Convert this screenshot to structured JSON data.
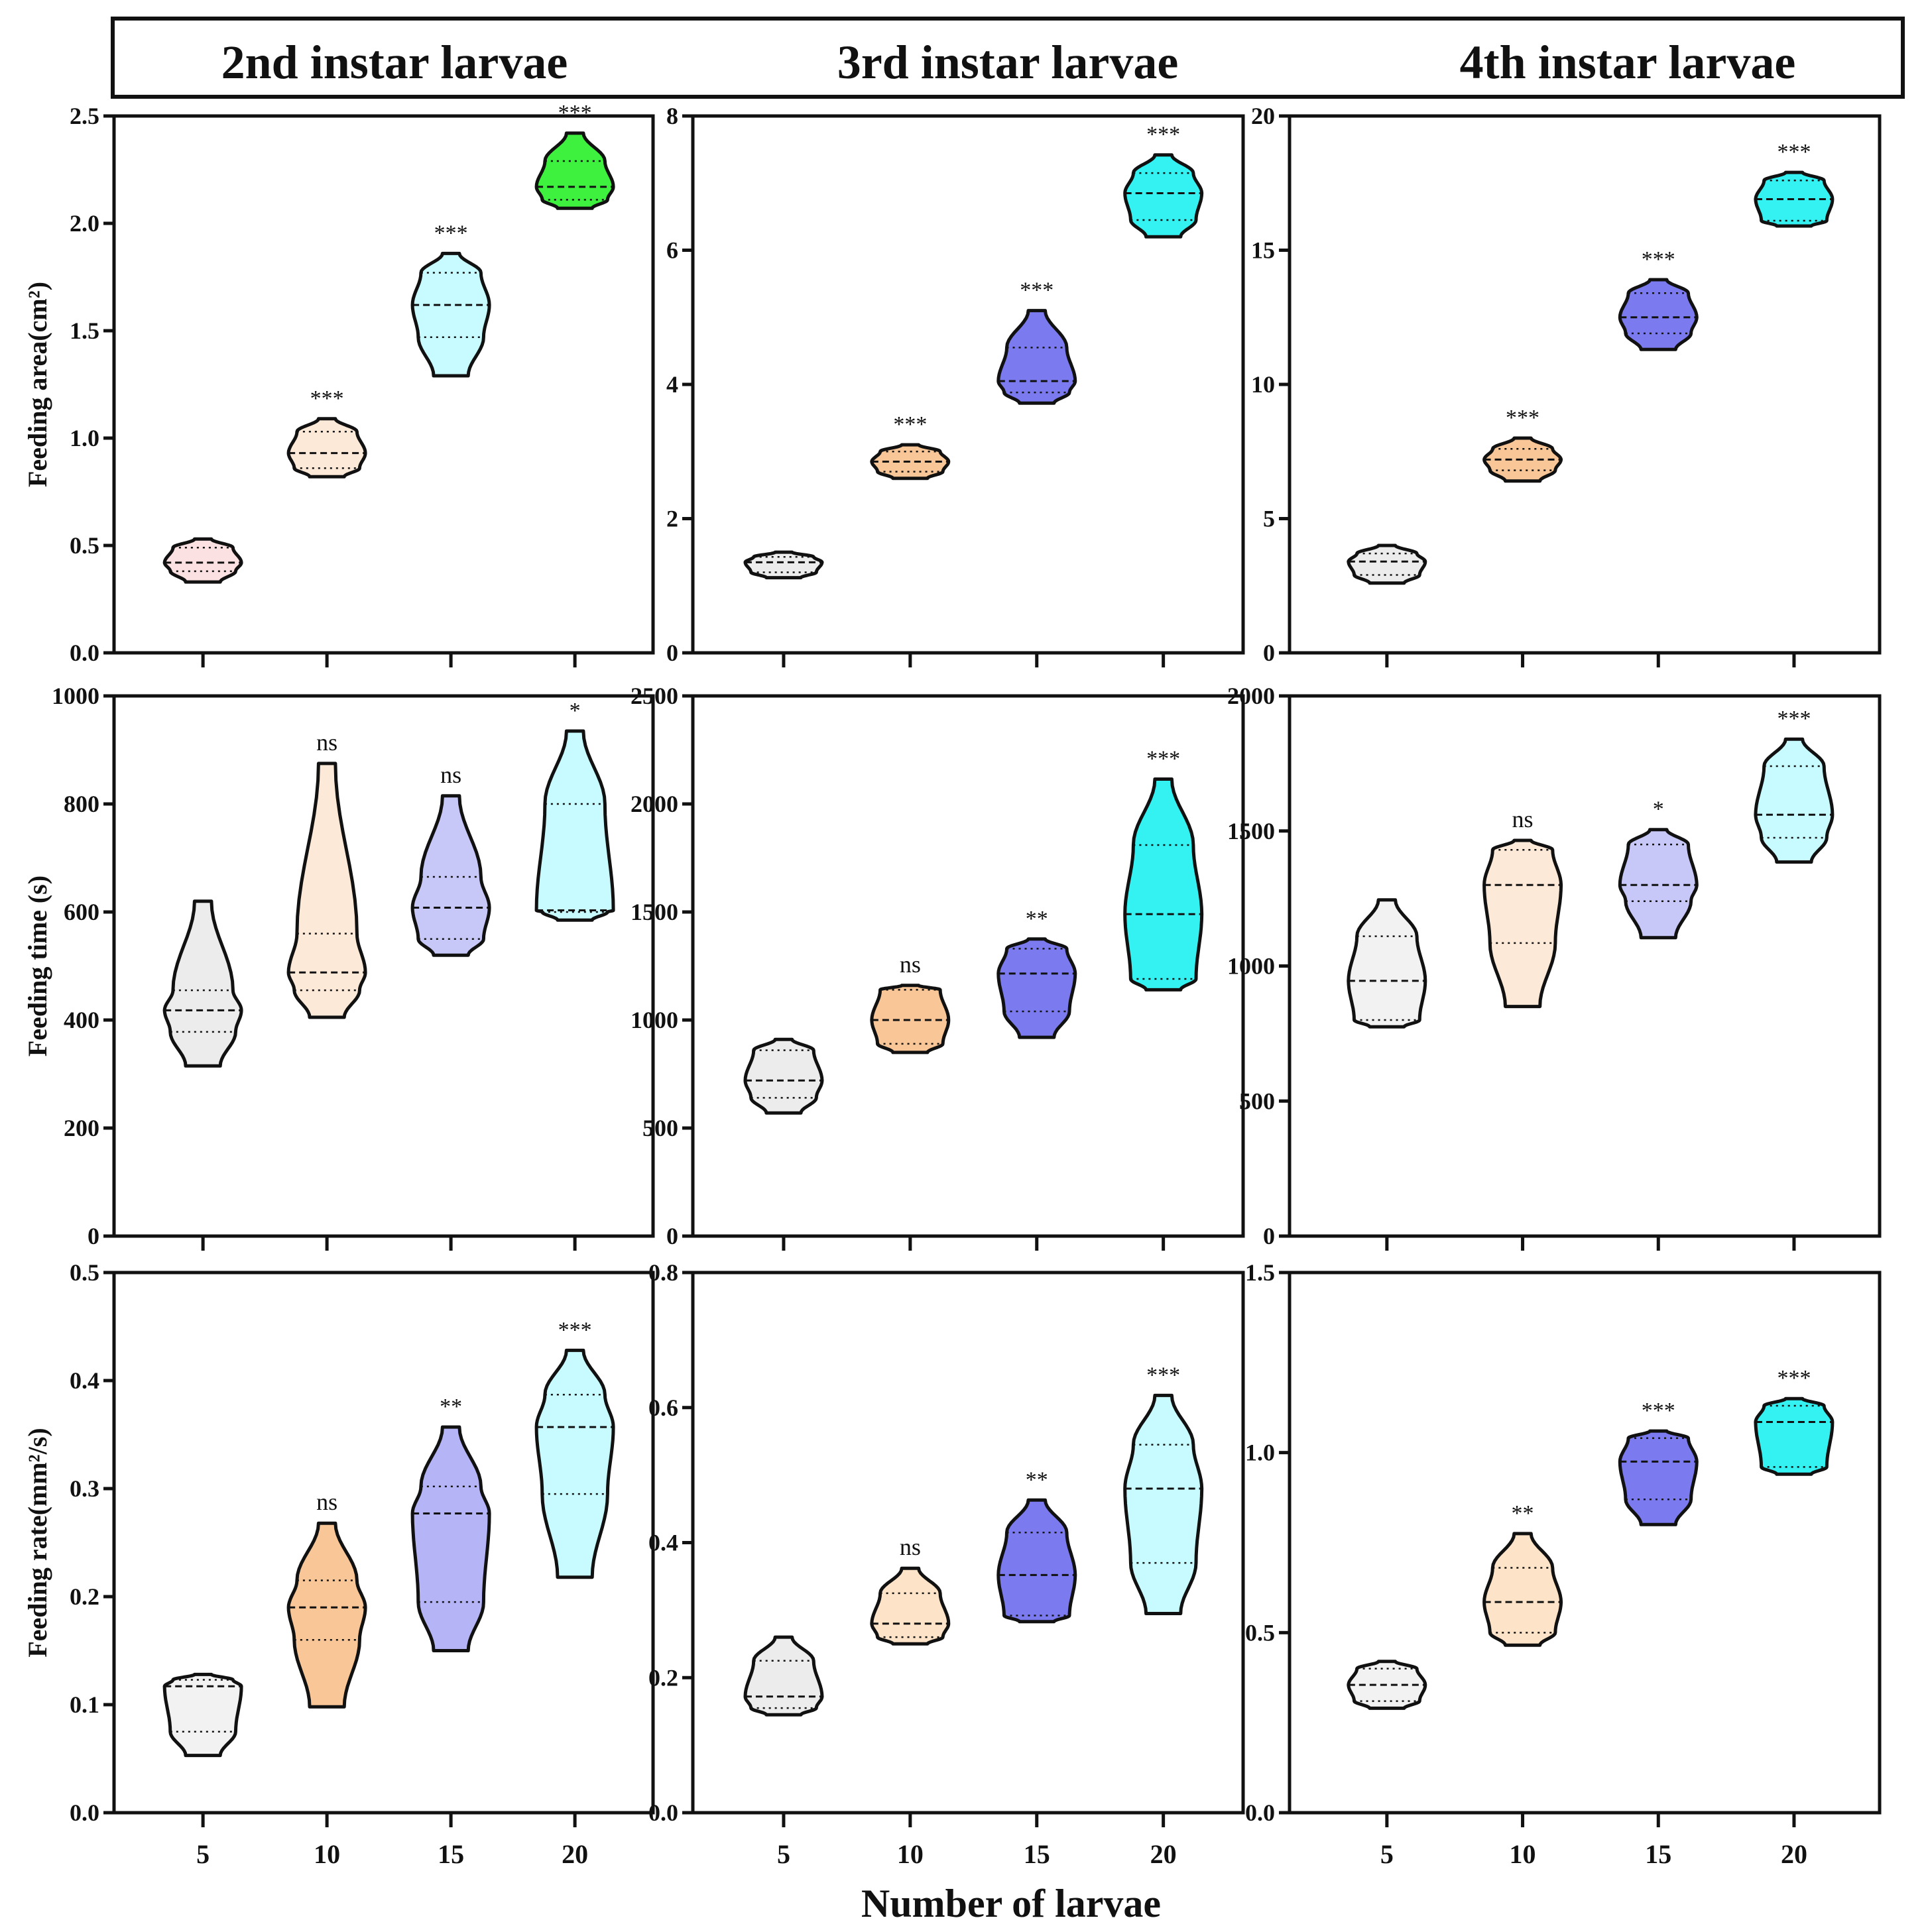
{
  "header": {
    "col_titles": [
      "2nd instar larvae",
      "3rd instar larvae",
      "4th instar larvae"
    ]
  },
  "figure": {
    "xlabel": "Number of larvae"
  },
  "chart_data": [
    {
      "id": "area-2nd",
      "type": "violin",
      "instar": "2nd instar larvae",
      "ylabel": "Feeding area(cm²)",
      "ylim": [
        0,
        2.5
      ],
      "yticks": [
        "0.0",
        "0.5",
        "1.0",
        "1.5",
        "2.0",
        "2.5"
      ],
      "categories": [
        "5",
        "10",
        "15",
        "20"
      ],
      "groups": [
        {
          "min": 0.33,
          "q1": 0.38,
          "median": 0.42,
          "q3": 0.49,
          "max": 0.53,
          "sig": "",
          "color": "#fbe1e1"
        },
        {
          "min": 0.82,
          "q1": 0.86,
          "median": 0.93,
          "q3": 1.03,
          "max": 1.09,
          "sig": "***",
          "color": "#fde9d8"
        },
        {
          "min": 1.29,
          "q1": 1.47,
          "median": 1.62,
          "q3": 1.77,
          "max": 1.86,
          "sig": "***",
          "color": "#c8fbff"
        },
        {
          "min": 2.07,
          "q1": 2.11,
          "median": 2.17,
          "q3": 2.29,
          "max": 2.42,
          "sig": "***",
          "color": "#3ef13e"
        }
      ]
    },
    {
      "id": "area-3rd",
      "type": "violin",
      "instar": "3rd instar larvae",
      "ylabel": "",
      "ylim": [
        0,
        8
      ],
      "yticks": [
        "0",
        "2",
        "4",
        "6",
        "8"
      ],
      "categories": [
        "5",
        "10",
        "15",
        "20"
      ],
      "groups": [
        {
          "min": 1.12,
          "q1": 1.2,
          "median": 1.35,
          "q3": 1.43,
          "max": 1.5,
          "sig": "",
          "color": "#ececec"
        },
        {
          "min": 2.6,
          "q1": 2.7,
          "median": 2.85,
          "q3": 3.0,
          "max": 3.1,
          "sig": "***",
          "color": "#f9c797"
        },
        {
          "min": 3.72,
          "q1": 3.88,
          "median": 4.05,
          "q3": 4.55,
          "max": 5.1,
          "sig": "***",
          "color": "#7b7bef"
        },
        {
          "min": 6.2,
          "q1": 6.45,
          "median": 6.85,
          "q3": 7.15,
          "max": 7.42,
          "sig": "***",
          "color": "#35f2f2"
        }
      ]
    },
    {
      "id": "area-4th",
      "type": "violin",
      "instar": "4th instar larvae",
      "ylabel": "",
      "ylim": [
        0,
        20
      ],
      "yticks": [
        "0",
        "5",
        "10",
        "15",
        "20"
      ],
      "categories": [
        "5",
        "10",
        "15",
        "20"
      ],
      "groups": [
        {
          "min": 2.6,
          "q1": 2.9,
          "median": 3.4,
          "q3": 3.7,
          "max": 4.0,
          "sig": "",
          "color": "#ececec"
        },
        {
          "min": 6.4,
          "q1": 6.8,
          "median": 7.2,
          "q3": 7.6,
          "max": 8.0,
          "sig": "***",
          "color": "#f9c797"
        },
        {
          "min": 11.3,
          "q1": 11.9,
          "median": 12.5,
          "q3": 13.4,
          "max": 13.9,
          "sig": "***",
          "color": "#7b7bef"
        },
        {
          "min": 15.9,
          "q1": 16.1,
          "median": 16.9,
          "q3": 17.6,
          "max": 17.9,
          "sig": "***",
          "color": "#35f2f2"
        }
      ]
    },
    {
      "id": "time-2nd",
      "type": "violin",
      "instar": "2nd instar larvae",
      "ylabel": "Feeding time (s)",
      "ylim": [
        0,
        1000
      ],
      "yticks": [
        "0",
        "200",
        "400",
        "600",
        "800",
        "1000"
      ],
      "categories": [
        "5",
        "10",
        "15",
        "20"
      ],
      "groups": [
        {
          "min": 315,
          "q1": 378,
          "median": 418,
          "q3": 455,
          "max": 620,
          "sig": "",
          "color": "#ececec"
        },
        {
          "min": 405,
          "q1": 455,
          "median": 488,
          "q3": 560,
          "max": 875,
          "sig": "ns",
          "color": "#fde9d8"
        },
        {
          "min": 520,
          "q1": 550,
          "median": 608,
          "q3": 665,
          "max": 815,
          "sig": "ns",
          "color": "#c8c8f8"
        },
        {
          "min": 585,
          "q1": 600,
          "median": 603,
          "q3": 800,
          "max": 935,
          "sig": "*",
          "color": "#c8fbff"
        }
      ]
    },
    {
      "id": "time-3rd",
      "type": "violin",
      "instar": "3rd instar larvae",
      "ylabel": "",
      "ylim": [
        0,
        2500
      ],
      "yticks": [
        "0",
        "500",
        "1000",
        "1500",
        "2000",
        "2500"
      ],
      "categories": [
        "5",
        "10",
        "15",
        "20"
      ],
      "groups": [
        {
          "min": 570,
          "q1": 640,
          "median": 720,
          "q3": 860,
          "max": 910,
          "sig": "",
          "color": "#ececec"
        },
        {
          "min": 850,
          "q1": 890,
          "median": 1000,
          "q3": 1140,
          "max": 1160,
          "sig": "ns",
          "color": "#f9c797"
        },
        {
          "min": 920,
          "q1": 1040,
          "median": 1215,
          "q3": 1330,
          "max": 1375,
          "sig": "**",
          "color": "#7b7bef"
        },
        {
          "min": 1140,
          "q1": 1190,
          "median": 1490,
          "q3": 1810,
          "max": 2115,
          "sig": "***",
          "color": "#35f2f2"
        }
      ]
    },
    {
      "id": "time-4th",
      "type": "violin",
      "instar": "4th instar larvae",
      "ylabel": "",
      "ylim": [
        0,
        2000
      ],
      "yticks": [
        "0",
        "500",
        "1000",
        "1500",
        "2000"
      ],
      "categories": [
        "5",
        "10",
        "15",
        "20"
      ],
      "groups": [
        {
          "min": 775,
          "q1": 800,
          "median": 945,
          "q3": 1110,
          "max": 1245,
          "sig": "",
          "color": "#f2f2f2"
        },
        {
          "min": 850,
          "q1": 1085,
          "median": 1300,
          "q3": 1430,
          "max": 1465,
          "sig": "ns",
          "color": "#fde9d8"
        },
        {
          "min": 1105,
          "q1": 1240,
          "median": 1300,
          "q3": 1450,
          "max": 1505,
          "sig": "*",
          "color": "#c8c8f8"
        },
        {
          "min": 1385,
          "q1": 1475,
          "median": 1560,
          "q3": 1740,
          "max": 1840,
          "sig": "***",
          "color": "#c8fbff"
        }
      ]
    },
    {
      "id": "rate-2nd",
      "type": "violin",
      "instar": "2nd instar larvae",
      "ylabel": "Feeding rate(mm²/s)",
      "ylim": [
        0,
        0.5
      ],
      "yticks": [
        "0.0",
        "0.1",
        "0.2",
        "0.3",
        "0.4",
        "0.5"
      ],
      "categories": [
        "5",
        "10",
        "15",
        "20"
      ],
      "groups": [
        {
          "min": 0.053,
          "q1": 0.075,
          "median": 0.117,
          "q3": 0.123,
          "max": 0.128,
          "sig": "",
          "color": "#f2f2f2"
        },
        {
          "min": 0.098,
          "q1": 0.16,
          "median": 0.19,
          "q3": 0.215,
          "max": 0.268,
          "sig": "ns",
          "color": "#f9c797"
        },
        {
          "min": 0.15,
          "q1": 0.195,
          "median": 0.277,
          "q3": 0.302,
          "max": 0.357,
          "sig": "**",
          "color": "#b4b4f6"
        },
        {
          "min": 0.218,
          "q1": 0.295,
          "median": 0.357,
          "q3": 0.387,
          "max": 0.428,
          "sig": "***",
          "color": "#c8fbff"
        }
      ]
    },
    {
      "id": "rate-3rd",
      "type": "violin",
      "instar": "3rd instar larvae",
      "ylabel": "",
      "ylim": [
        0,
        0.8
      ],
      "yticks": [
        "0.0",
        "0.2",
        "0.4",
        "0.6",
        "0.8"
      ],
      "categories": [
        "5",
        "10",
        "15",
        "20"
      ],
      "groups": [
        {
          "min": 0.145,
          "q1": 0.155,
          "median": 0.172,
          "q3": 0.225,
          "max": 0.26,
          "sig": "",
          "color": "#ececec"
        },
        {
          "min": 0.25,
          "q1": 0.26,
          "median": 0.28,
          "q3": 0.325,
          "max": 0.362,
          "sig": "ns",
          "color": "#fde3c8"
        },
        {
          "min": 0.283,
          "q1": 0.292,
          "median": 0.352,
          "q3": 0.415,
          "max": 0.463,
          "sig": "**",
          "color": "#7b7bef"
        },
        {
          "min": 0.295,
          "q1": 0.37,
          "median": 0.48,
          "q3": 0.545,
          "max": 0.618,
          "sig": "***",
          "color": "#c8fbff"
        }
      ]
    },
    {
      "id": "rate-4th",
      "type": "violin",
      "instar": "4th instar larvae",
      "ylabel": "",
      "ylim": [
        0,
        1.5
      ],
      "yticks": [
        "0.0",
        "0.5",
        "1.0",
        "1.5"
      ],
      "categories": [
        "5",
        "10",
        "15",
        "20"
      ],
      "groups": [
        {
          "min": 0.29,
          "q1": 0.31,
          "median": 0.355,
          "q3": 0.4,
          "max": 0.42,
          "sig": "",
          "color": "#f2f2f2"
        },
        {
          "min": 0.465,
          "q1": 0.5,
          "median": 0.585,
          "q3": 0.68,
          "max": 0.775,
          "sig": "**",
          "color": "#fde3c8"
        },
        {
          "min": 0.8,
          "q1": 0.87,
          "median": 0.975,
          "q3": 1.04,
          "max": 1.06,
          "sig": "***",
          "color": "#7b7bef"
        },
        {
          "min": 0.94,
          "q1": 0.96,
          "median": 1.085,
          "q3": 1.13,
          "max": 1.15,
          "sig": "***",
          "color": "#35f2f2"
        }
      ]
    }
  ]
}
